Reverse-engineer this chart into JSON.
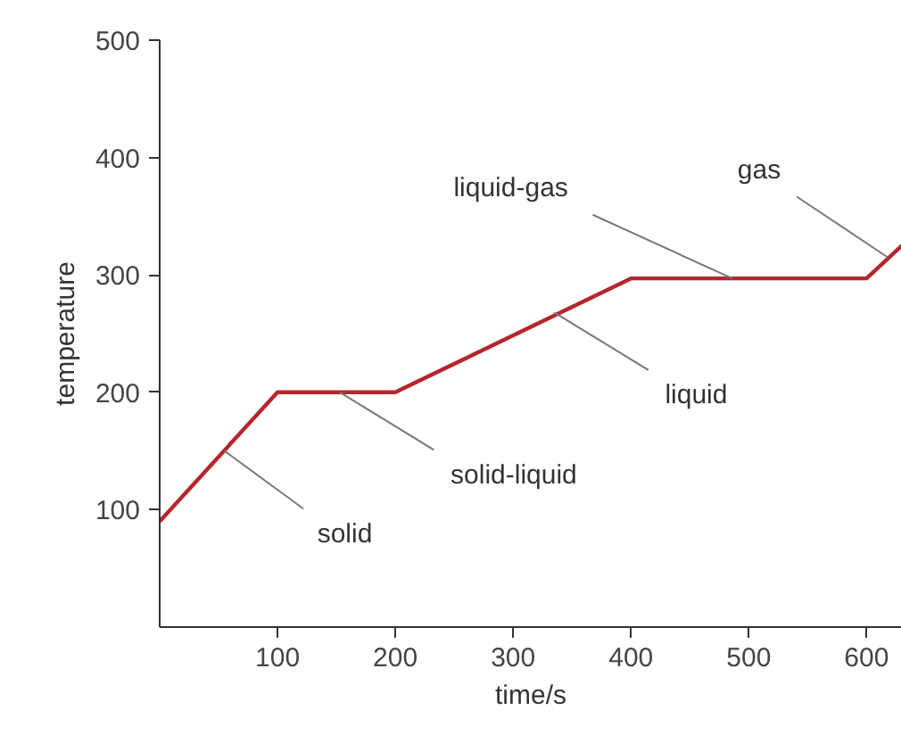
{
  "chart_data": {
    "type": "line",
    "xlabel": "time/s",
    "ylabel": "temperature",
    "x": [
      0,
      100,
      200,
      400,
      600,
      630
    ],
    "series": [
      {
        "color": "#b5262c",
        "values": [
          90,
          200,
          200,
          297,
          297,
          325
        ]
      }
    ],
    "xlim": [
      0,
      630
    ],
    "ylim": [
      0,
      500
    ],
    "xticks": [
      100,
      200,
      300,
      400,
      500,
      600
    ],
    "yticks": [
      100,
      200,
      300,
      400,
      500
    ],
    "grid": false,
    "marker": "none",
    "line_style": "solid",
    "annotations": [
      {
        "text": "solid",
        "x": 55,
        "y": 150
      },
      {
        "text": "solid-liquid",
        "x": 153,
        "y": 200
      },
      {
        "text": "liquid",
        "x": 335,
        "y": 268
      },
      {
        "text": "liquid-gas",
        "x": 486,
        "y": 297
      },
      {
        "text": "gas",
        "x": 618,
        "y": 315
      }
    ]
  }
}
